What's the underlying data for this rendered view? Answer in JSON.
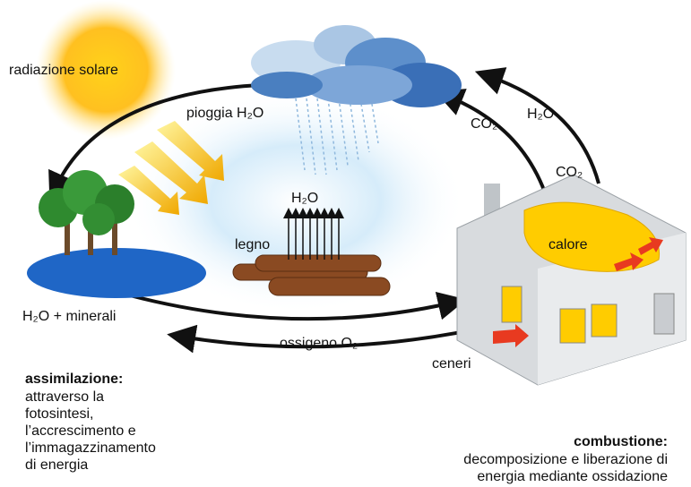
{
  "labels": {
    "sun": "radiazione solare",
    "rain": "pioggia H₂O",
    "vapor": "H₂O",
    "wood": "legno",
    "co2_inner": "CO₂",
    "h2o_right": "H₂O",
    "co2_right": "CO₂",
    "heat": "calore",
    "minerals": "H₂O + minerali",
    "oxygen": "ossigeno O₂",
    "ashes": "ceneri"
  },
  "assimilation": {
    "title": "assimilazione:",
    "lines": [
      "attraverso la",
      "fotosintesi,",
      "l’accrescimento e",
      "l’immagazzinamento",
      "di energia"
    ]
  },
  "combustion": {
    "title": "combustione:",
    "lines": [
      "decomposizione e liberazione di",
      "energia mediante ossidazione"
    ]
  }
}
